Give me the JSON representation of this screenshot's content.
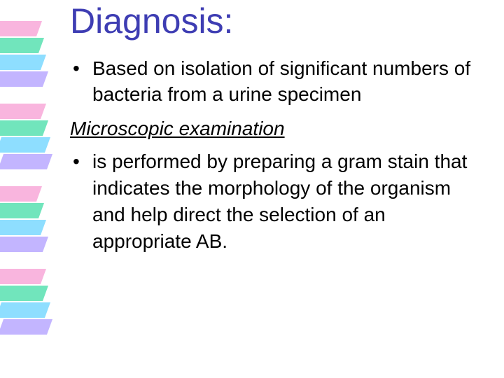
{
  "slide": {
    "title": "Diagnosis:",
    "title_color": "#3e3db3",
    "body_color": "#000000",
    "background_color": "#ffffff",
    "font_family": "Comic Sans MS",
    "title_fontsize_pt": 40,
    "body_fontsize_pt": 21,
    "bullets_1": [
      "Based on isolation of significant numbers of bacteria from a urine specimen"
    ],
    "subheading": "Microscopic examination",
    "bullets_2": [
      "is performed by preparing a gram stain that indicates the morphology of the  organism and help direct the selection of an appropriate AB."
    ],
    "decoration": {
      "stripes": [
        {
          "color": "#f8a8d8",
          "opacity": 0.85
        },
        {
          "color": "#58e0b0",
          "opacity": 0.85
        },
        {
          "color": "#7ad8ff",
          "opacity": 0.85
        },
        {
          "color": "#b8a8ff",
          "opacity": 0.85
        }
      ],
      "stripe_width": 70,
      "stripe_height": 22,
      "stripe_skew_deg": -20,
      "group_gap": 118
    }
  }
}
